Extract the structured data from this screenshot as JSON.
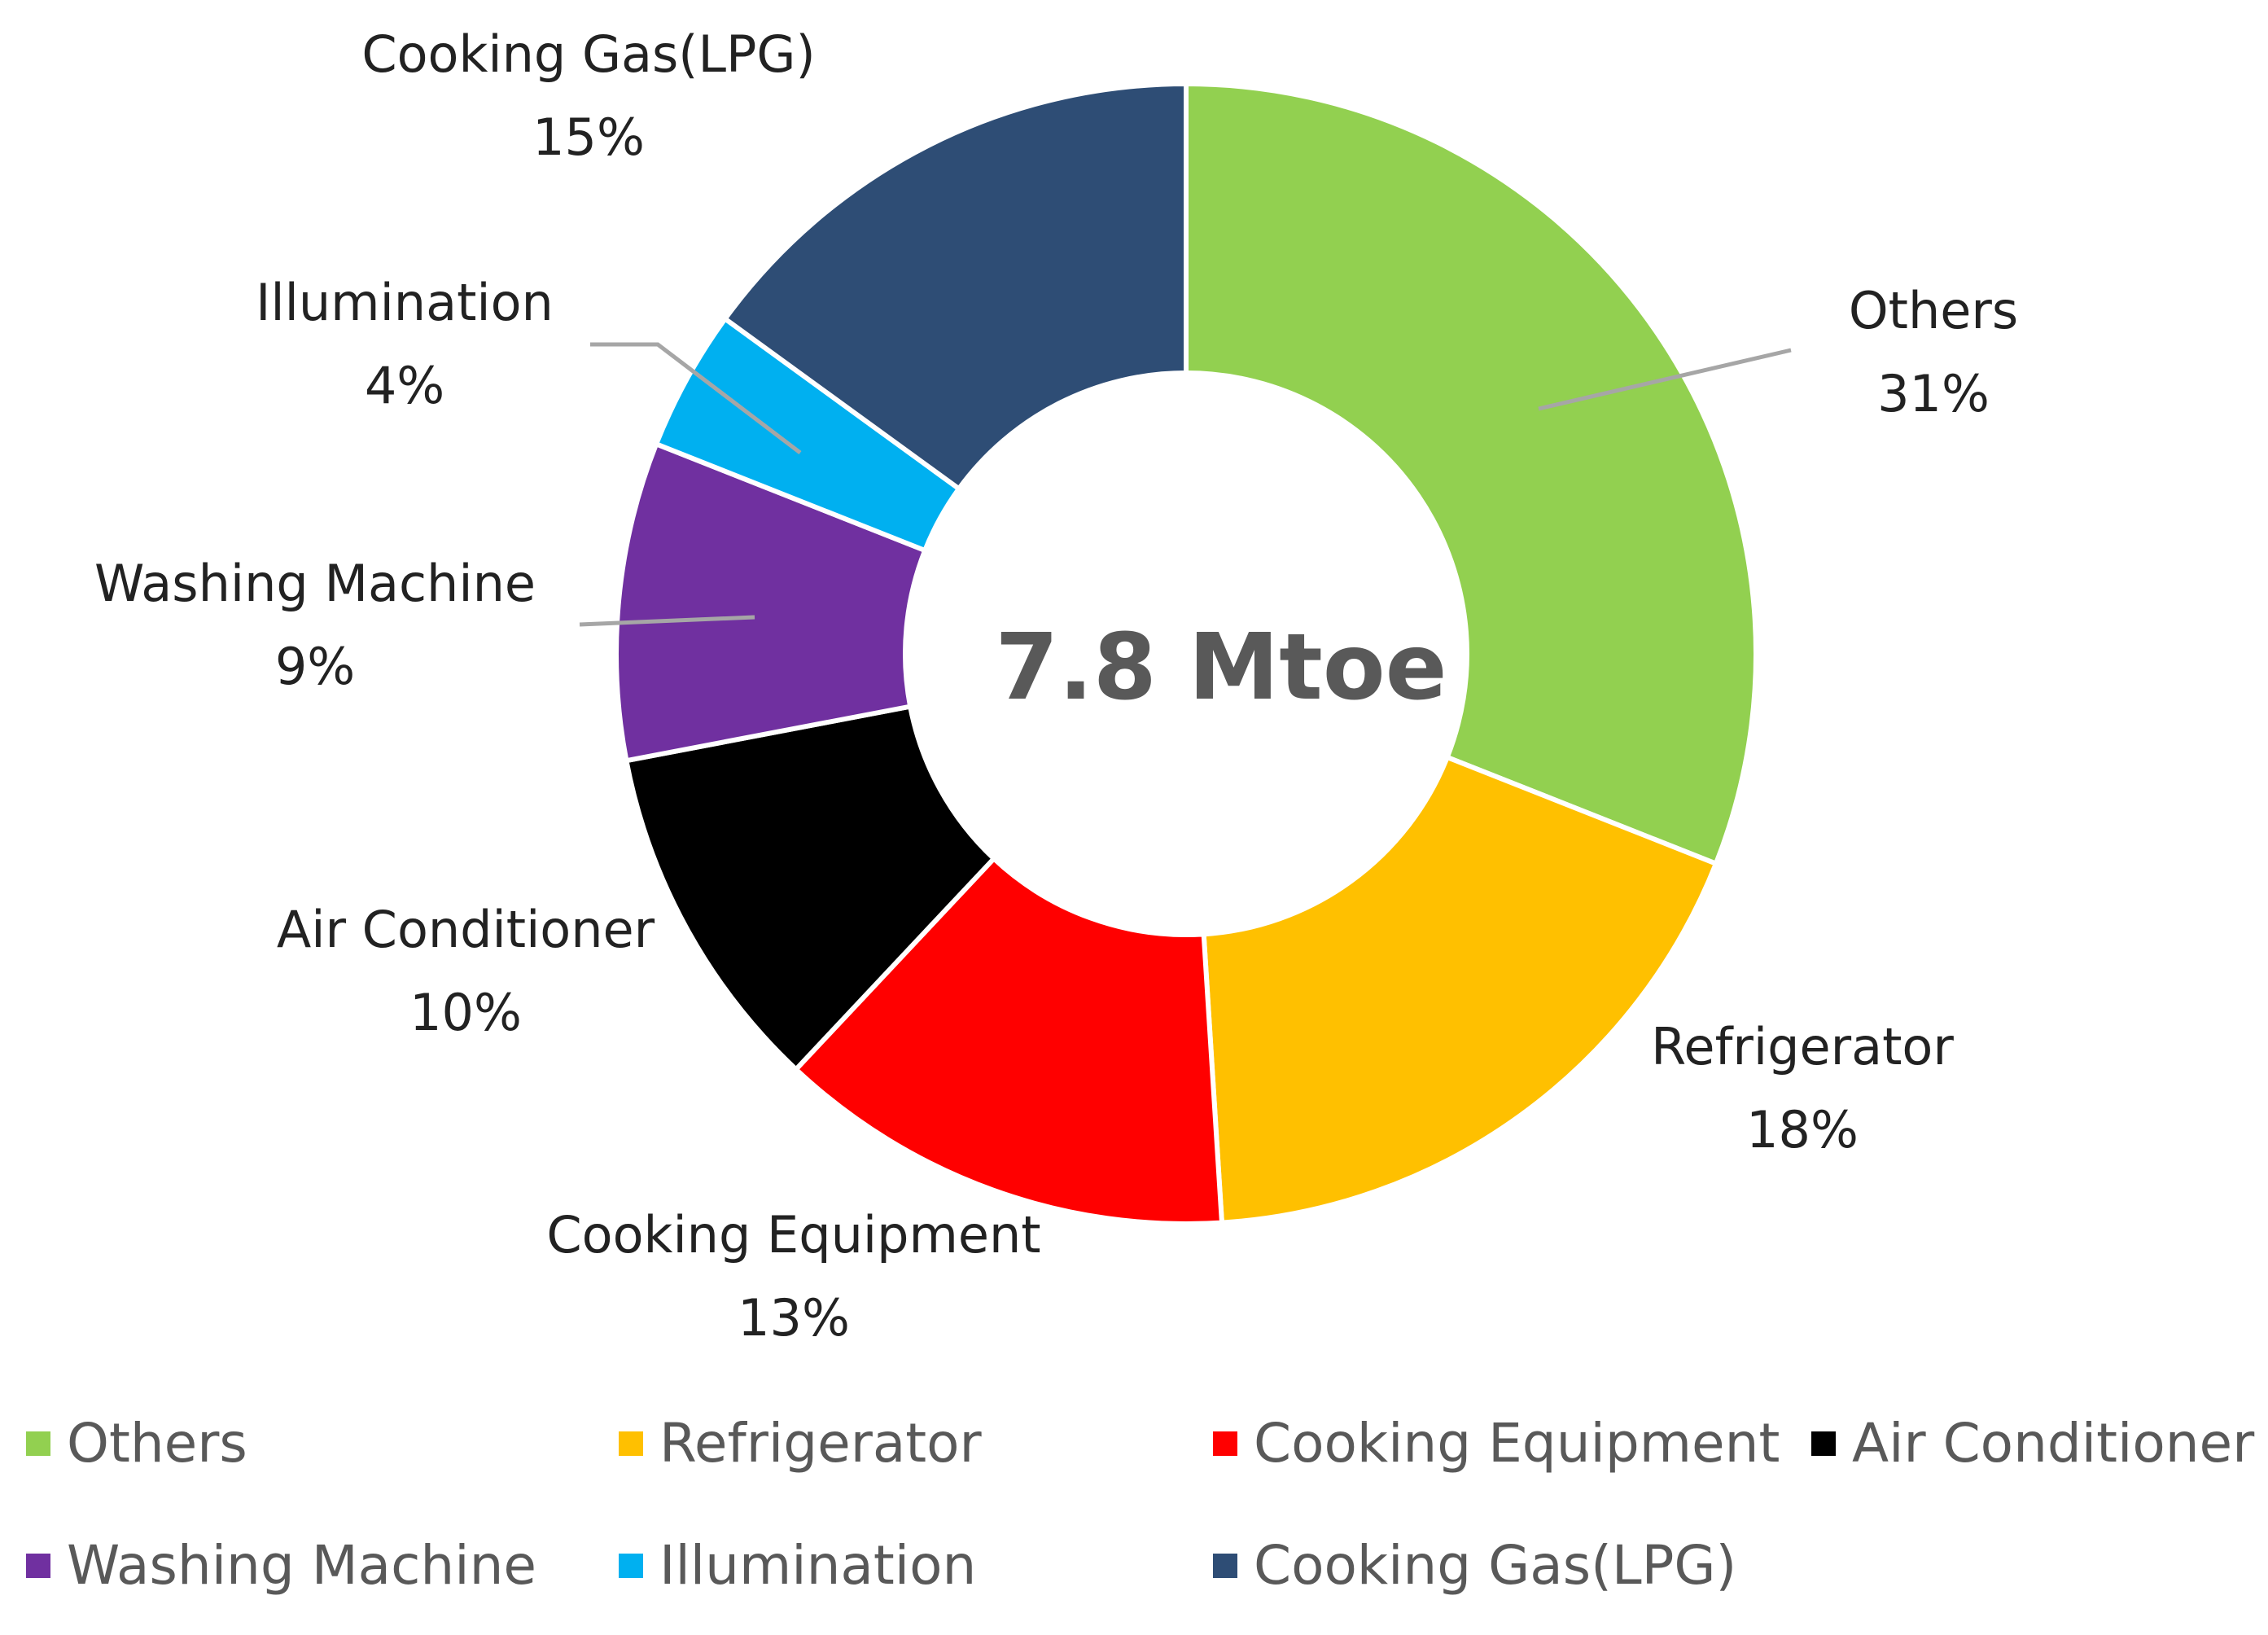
{
  "chart_data": {
    "type": "pie",
    "variant": "donut",
    "center_label": "7.8 Mtoe",
    "series": [
      {
        "name": "Others",
        "value": 31,
        "label": "31%",
        "color": "#92d050"
      },
      {
        "name": "Refrigerator",
        "value": 18,
        "label": "18%",
        "color": "#ffc000"
      },
      {
        "name": "Cooking Equipment",
        "value": 13,
        "label": "13%",
        "color": "#ff0000"
      },
      {
        "name": "Air Conditioner",
        "value": 10,
        "label": "10%",
        "color": "#000000"
      },
      {
        "name": "Washing Machine",
        "value": 9,
        "label": "9%",
        "color": "#7030a0"
      },
      {
        "name": "Illumination",
        "value": 4,
        "label": "4%",
        "color": "#00b0f0"
      },
      {
        "name": "Cooking Gas(LPG)",
        "value": 15,
        "label": "15%",
        "color": "#2e4d75"
      }
    ],
    "legend_position": "bottom",
    "leader_line_color": "#a6a6a6"
  }
}
